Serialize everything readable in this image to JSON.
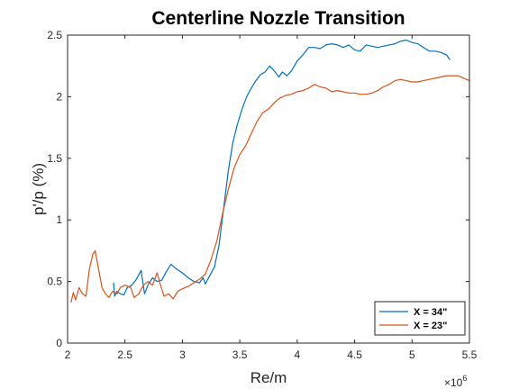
{
  "chart_data": {
    "type": "line",
    "title": "Centerline Nozzle Transition",
    "xlabel": "Re/m",
    "ylabel": "p'/p (%)",
    "x_exponent_label": "×10",
    "x_exponent_power": "6",
    "xlim": [
      2,
      5.5
    ],
    "ylim": [
      0,
      2.5
    ],
    "xticks": [
      2,
      2.5,
      3,
      3.5,
      4,
      4.5,
      5,
      5.5
    ],
    "xtick_labels": [
      "2",
      "2.5",
      "3",
      "3.5",
      "4",
      "4.5",
      "5",
      "5.5"
    ],
    "yticks": [
      0,
      0.5,
      1,
      1.5,
      2,
      2.5
    ],
    "ytick_labels": [
      "0",
      "0.5",
      "1",
      "1.5",
      "2",
      "2.5"
    ],
    "grid": false,
    "legend_position": "bottom-right",
    "series": [
      {
        "name": "X = 34\"",
        "color": "#0072BD",
        "points": [
          [
            2.4,
            0.49
          ],
          [
            2.41,
            0.38
          ],
          [
            2.43,
            0.42
          ],
          [
            2.46,
            0.4
          ],
          [
            2.49,
            0.39
          ],
          [
            2.52,
            0.45
          ],
          [
            2.56,
            0.47
          ],
          [
            2.6,
            0.52
          ],
          [
            2.64,
            0.59
          ],
          [
            2.67,
            0.4
          ],
          [
            2.7,
            0.47
          ],
          [
            2.74,
            0.53
          ],
          [
            2.78,
            0.5
          ],
          [
            2.82,
            0.51
          ],
          [
            2.86,
            0.58
          ],
          [
            2.9,
            0.64
          ],
          [
            2.95,
            0.6
          ],
          [
            3.0,
            0.57
          ],
          [
            3.05,
            0.53
          ],
          [
            3.1,
            0.5
          ],
          [
            3.15,
            0.49
          ],
          [
            3.18,
            0.53
          ],
          [
            3.2,
            0.48
          ],
          [
            3.24,
            0.55
          ],
          [
            3.28,
            0.62
          ],
          [
            3.32,
            0.8
          ],
          [
            3.36,
            1.1
          ],
          [
            3.4,
            1.4
          ],
          [
            3.44,
            1.63
          ],
          [
            3.48,
            1.78
          ],
          [
            3.52,
            1.9
          ],
          [
            3.56,
            2.0
          ],
          [
            3.6,
            2.07
          ],
          [
            3.64,
            2.13
          ],
          [
            3.68,
            2.18
          ],
          [
            3.72,
            2.2
          ],
          [
            3.76,
            2.25
          ],
          [
            3.8,
            2.21
          ],
          [
            3.84,
            2.16
          ],
          [
            3.87,
            2.2
          ],
          [
            3.91,
            2.17
          ],
          [
            3.95,
            2.21
          ],
          [
            4.0,
            2.29
          ],
          [
            4.05,
            2.34
          ],
          [
            4.1,
            2.4
          ],
          [
            4.15,
            2.4
          ],
          [
            4.2,
            2.39
          ],
          [
            4.25,
            2.42
          ],
          [
            4.3,
            2.43
          ],
          [
            4.35,
            2.42
          ],
          [
            4.4,
            2.4
          ],
          [
            4.45,
            2.42
          ],
          [
            4.5,
            2.38
          ],
          [
            4.55,
            2.37
          ],
          [
            4.6,
            2.42
          ],
          [
            4.65,
            2.41
          ],
          [
            4.7,
            2.4
          ],
          [
            4.75,
            2.41
          ],
          [
            4.8,
            2.42
          ],
          [
            4.85,
            2.43
          ],
          [
            4.9,
            2.45
          ],
          [
            4.95,
            2.46
          ],
          [
            5.0,
            2.44
          ],
          [
            5.05,
            2.43
          ],
          [
            5.1,
            2.4
          ],
          [
            5.15,
            2.37
          ],
          [
            5.2,
            2.37
          ],
          [
            5.25,
            2.36
          ],
          [
            5.3,
            2.34
          ],
          [
            5.33,
            2.3
          ]
        ]
      },
      {
        "name": "X = 23\"",
        "color": "#D95319",
        "points": [
          [
            2.03,
            0.33
          ],
          [
            2.05,
            0.41
          ],
          [
            2.07,
            0.35
          ],
          [
            2.1,
            0.45
          ],
          [
            2.13,
            0.4
          ],
          [
            2.16,
            0.38
          ],
          [
            2.19,
            0.6
          ],
          [
            2.22,
            0.72
          ],
          [
            2.24,
            0.75
          ],
          [
            2.27,
            0.6
          ],
          [
            2.3,
            0.45
          ],
          [
            2.33,
            0.4
          ],
          [
            2.36,
            0.37
          ],
          [
            2.39,
            0.42
          ],
          [
            2.43,
            0.4
          ],
          [
            2.46,
            0.45
          ],
          [
            2.5,
            0.47
          ],
          [
            2.55,
            0.45
          ],
          [
            2.58,
            0.37
          ],
          [
            2.62,
            0.4
          ],
          [
            2.66,
            0.47
          ],
          [
            2.7,
            0.5
          ],
          [
            2.74,
            0.47
          ],
          [
            2.78,
            0.57
          ],
          [
            2.81,
            0.47
          ],
          [
            2.84,
            0.38
          ],
          [
            2.88,
            0.4
          ],
          [
            2.92,
            0.36
          ],
          [
            2.96,
            0.42
          ],
          [
            3.0,
            0.44
          ],
          [
            3.05,
            0.46
          ],
          [
            3.1,
            0.49
          ],
          [
            3.15,
            0.52
          ],
          [
            3.2,
            0.56
          ],
          [
            3.25,
            0.68
          ],
          [
            3.3,
            0.83
          ],
          [
            3.35,
            1.05
          ],
          [
            3.4,
            1.25
          ],
          [
            3.45,
            1.42
          ],
          [
            3.5,
            1.53
          ],
          [
            3.55,
            1.6
          ],
          [
            3.6,
            1.7
          ],
          [
            3.65,
            1.8
          ],
          [
            3.7,
            1.87
          ],
          [
            3.75,
            1.9
          ],
          [
            3.8,
            1.95
          ],
          [
            3.85,
            1.99
          ],
          [
            3.9,
            2.01
          ],
          [
            3.95,
            2.02
          ],
          [
            4.0,
            2.04
          ],
          [
            4.05,
            2.05
          ],
          [
            4.1,
            2.07
          ],
          [
            4.15,
            2.1
          ],
          [
            4.2,
            2.08
          ],
          [
            4.25,
            2.07
          ],
          [
            4.3,
            2.04
          ],
          [
            4.35,
            2.05
          ],
          [
            4.4,
            2.04
          ],
          [
            4.45,
            2.03
          ],
          [
            4.5,
            2.03
          ],
          [
            4.55,
            2.02
          ],
          [
            4.6,
            2.02
          ],
          [
            4.65,
            2.03
          ],
          [
            4.7,
            2.05
          ],
          [
            4.75,
            2.08
          ],
          [
            4.8,
            2.1
          ],
          [
            4.85,
            2.13
          ],
          [
            4.9,
            2.14
          ],
          [
            4.95,
            2.13
          ],
          [
            5.0,
            2.12
          ],
          [
            5.05,
            2.12
          ],
          [
            5.1,
            2.13
          ],
          [
            5.15,
            2.14
          ],
          [
            5.2,
            2.15
          ],
          [
            5.25,
            2.16
          ],
          [
            5.3,
            2.17
          ],
          [
            5.35,
            2.17
          ],
          [
            5.4,
            2.17
          ],
          [
            5.45,
            2.15
          ],
          [
            5.5,
            2.13
          ]
        ]
      }
    ]
  }
}
